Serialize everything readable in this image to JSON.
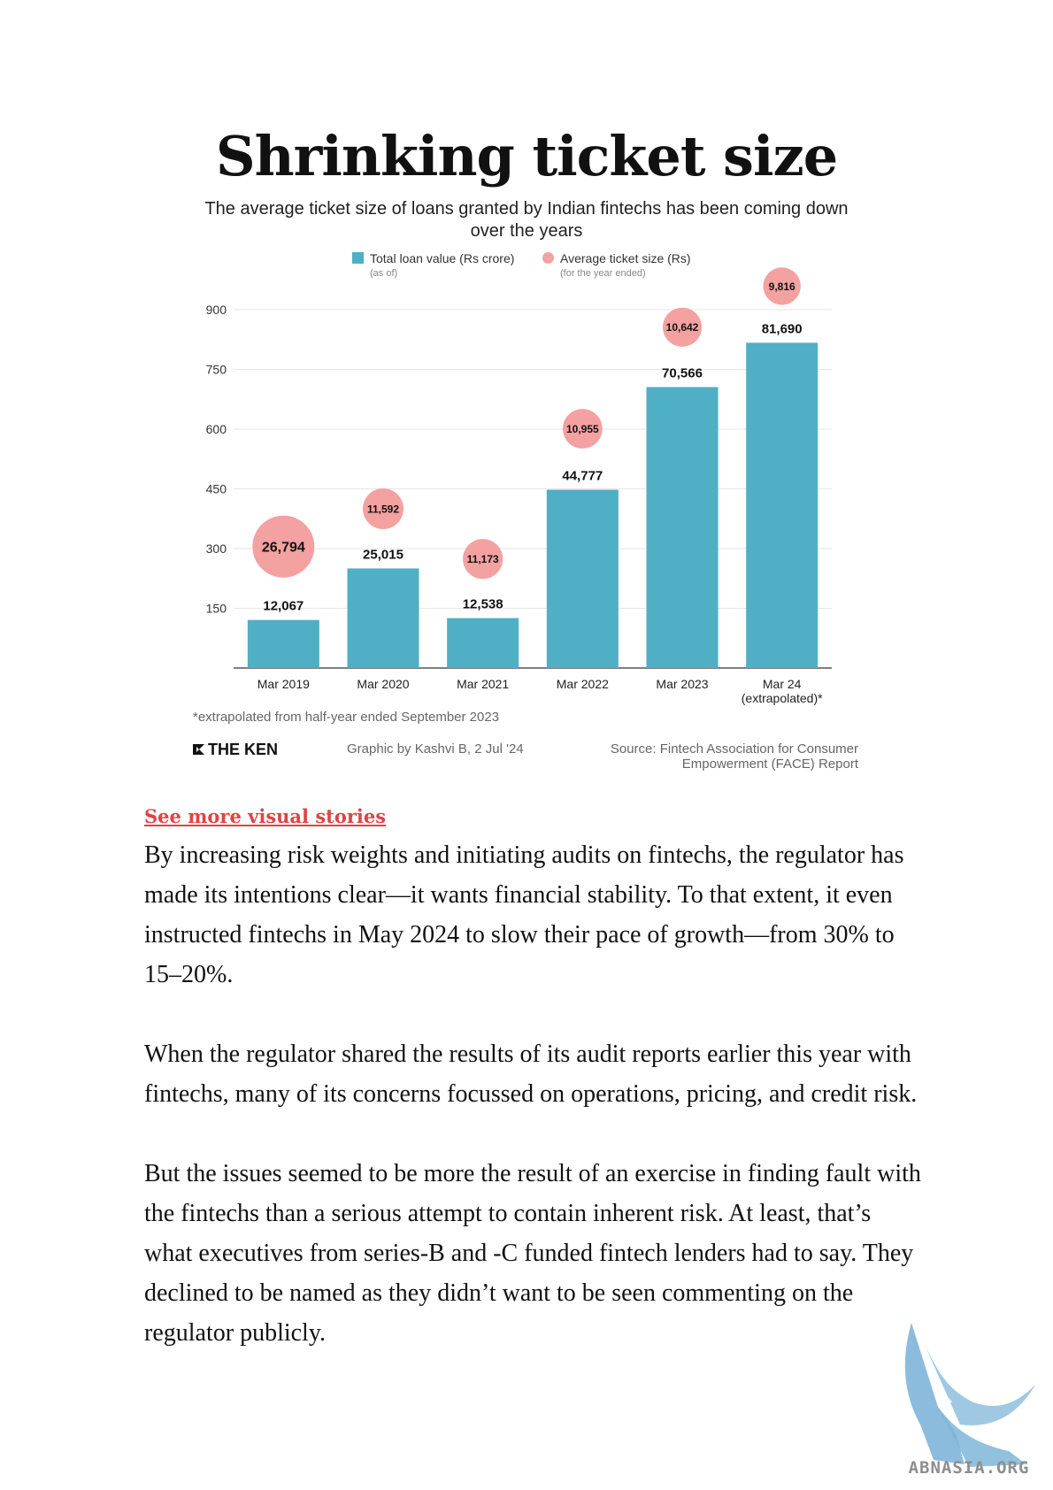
{
  "chart_data": {
    "type": "bar",
    "title": "Shrinking ticket size",
    "subtitle": "The average ticket size of loans granted by Indian fintechs has been coming down over the years",
    "categories": [
      "Mar 2019",
      "Mar 2020",
      "Mar 2021",
      "Mar 2022",
      "Mar 2023",
      "Mar 24"
    ],
    "category_sublabels": [
      "",
      "",
      "",
      "",
      "",
      "(extrapolated)*"
    ],
    "yticks": [
      150,
      300,
      450,
      600,
      750,
      900
    ],
    "ylim": [
      0,
      900
    ],
    "grid": true,
    "legend": {
      "placement": "top-center",
      "items": [
        {
          "label": "Total loan value (Rs crore)",
          "note": "(as of)",
          "shape": "square",
          "color": "#4fafc5"
        },
        {
          "label": "Average ticket size (Rs)",
          "note": "(for the year ended)",
          "shape": "circle",
          "color": "#f4a1a1"
        }
      ]
    },
    "series": [
      {
        "name": "Total loan value (Rs crore)",
        "type": "bar",
        "color": "#4fafc5",
        "values": [
          120.67,
          250.15,
          125.38,
          447.77,
          705.66,
          816.9
        ],
        "labels": [
          "12,067",
          "25,015",
          "12,538",
          "44,777",
          "70,566",
          "81,690"
        ]
      },
      {
        "name": "Average ticket size (Rs)",
        "type": "bubble",
        "color": "#f4a1a1",
        "values": [
          26794,
          11592,
          11173,
          10955,
          10642,
          9816
        ],
        "labels": [
          "26,794",
          "11,592",
          "11,173",
          "10,955",
          "10,642",
          "9,816"
        ],
        "y_position": [
          305,
          400,
          274,
          601,
          856,
          959
        ]
      }
    ]
  },
  "footnote": "*extrapolated from half-year ended September 2023",
  "brand": "THE KEN",
  "credit": "Graphic by Kashvi B, 2 Jul '24",
  "source": {
    "line1": "Source: Fintech Association for Consumer",
    "line2": "Empowerment (FACE) Report"
  },
  "link_text": "See more visual stories",
  "paragraphs": [
    "By increasing risk weights and initiating audits on fintechs, the regulator has made its intentions clear—it wants financial stability. To that extent, it even instructed  fintechs in May 2024 to slow their pace of growth—from 30% to 15–20%.",
    "When the regulator shared the results of its audit reports earlier this year with fintechs, many of its concerns focussed on operations, pricing, and credit risk.",
    "But the issues seemed to be more the result of an exercise in finding fault with the fintechs than a serious attempt to contain inherent risk. At least, that’s what executives from series-B and -C funded fintech lenders had to say. They declined to be named as they didn’t want to be seen commenting on the regulator publicly."
  ],
  "watermark_text": "ABNASIA.ORG",
  "colors": {
    "bar": "#4fafc5",
    "bubble": "#f4a1a1",
    "link": "#e04343",
    "watermark": "#7fb5d9"
  }
}
